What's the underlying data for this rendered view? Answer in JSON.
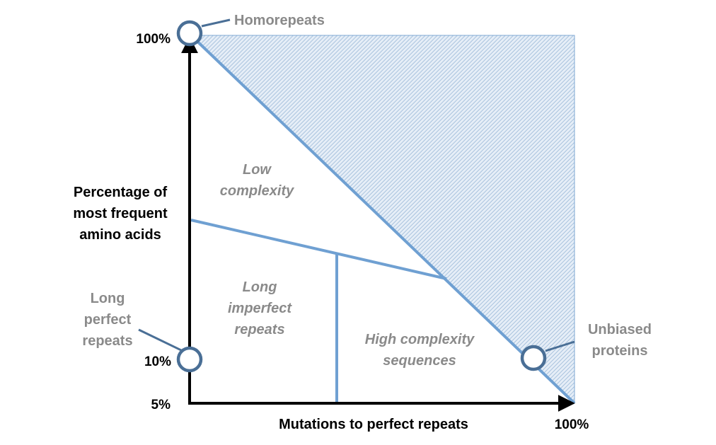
{
  "axes": {
    "x_label": "Mutations to perfect repeats",
    "x_max_tick": "100%",
    "y_label": [
      "Percentage of",
      "most frequent",
      "amino acids"
    ],
    "y_top_tick": "100%",
    "y_mid_tick": "10%",
    "y_bottom_tick": "5%"
  },
  "callouts": {
    "homorepeats": "Homorepeats",
    "long_perfect_repeats": [
      "Long",
      "perfect",
      "repeats"
    ],
    "unbiased_proteins": [
      "Unbiased",
      "proteins"
    ]
  },
  "regions": {
    "low_complexity": [
      "Low",
      "complexity"
    ],
    "long_imperfect_repeats": [
      "Long",
      "imperfect",
      "repeats"
    ],
    "high_complexity": [
      "High complexity",
      "sequences"
    ]
  },
  "colors": {
    "line": "#6fa0d2",
    "circle_stroke": "#4a6f96",
    "hatch": "#9ab8d8",
    "shade": "#e6eef7",
    "label_gray": "#8a8a8a",
    "axis": "#000000"
  }
}
